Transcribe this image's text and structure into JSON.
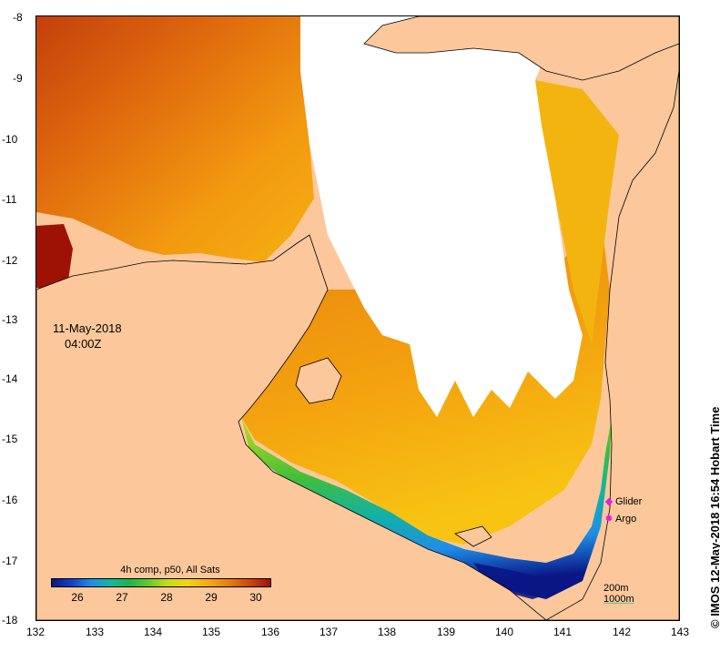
{
  "map": {
    "x_ticks": [
      "132",
      "133",
      "134",
      "135",
      "136",
      "137",
      "138",
      "139",
      "140",
      "141",
      "142",
      "143"
    ],
    "y_ticks": [
      "-8",
      "-9",
      "-10",
      "-11",
      "-12",
      "-13",
      "-14",
      "-15",
      "-16",
      "-17",
      "-18"
    ],
    "land_color": "#fcc89b",
    "cloud_color": "#ffffff"
  },
  "date": {
    "line1": "11-May-2018",
    "line2": "04:00Z"
  },
  "legend": {
    "glider": {
      "label": "Glider",
      "icon": "diamond-icon",
      "color": "#e21ce6"
    },
    "argo": {
      "label": "Argo",
      "icon": "circle-icon",
      "color": "#e21ce6"
    }
  },
  "contours": {
    "c200": "200m",
    "c1000": "1000m"
  },
  "colorbar": {
    "title": "4h comp, p50, All Sats",
    "ticks": [
      "26",
      "27",
      "28",
      "29",
      "30"
    ]
  },
  "credit": "© IMOS 12-May-2018 16:54 Hobart Time"
}
